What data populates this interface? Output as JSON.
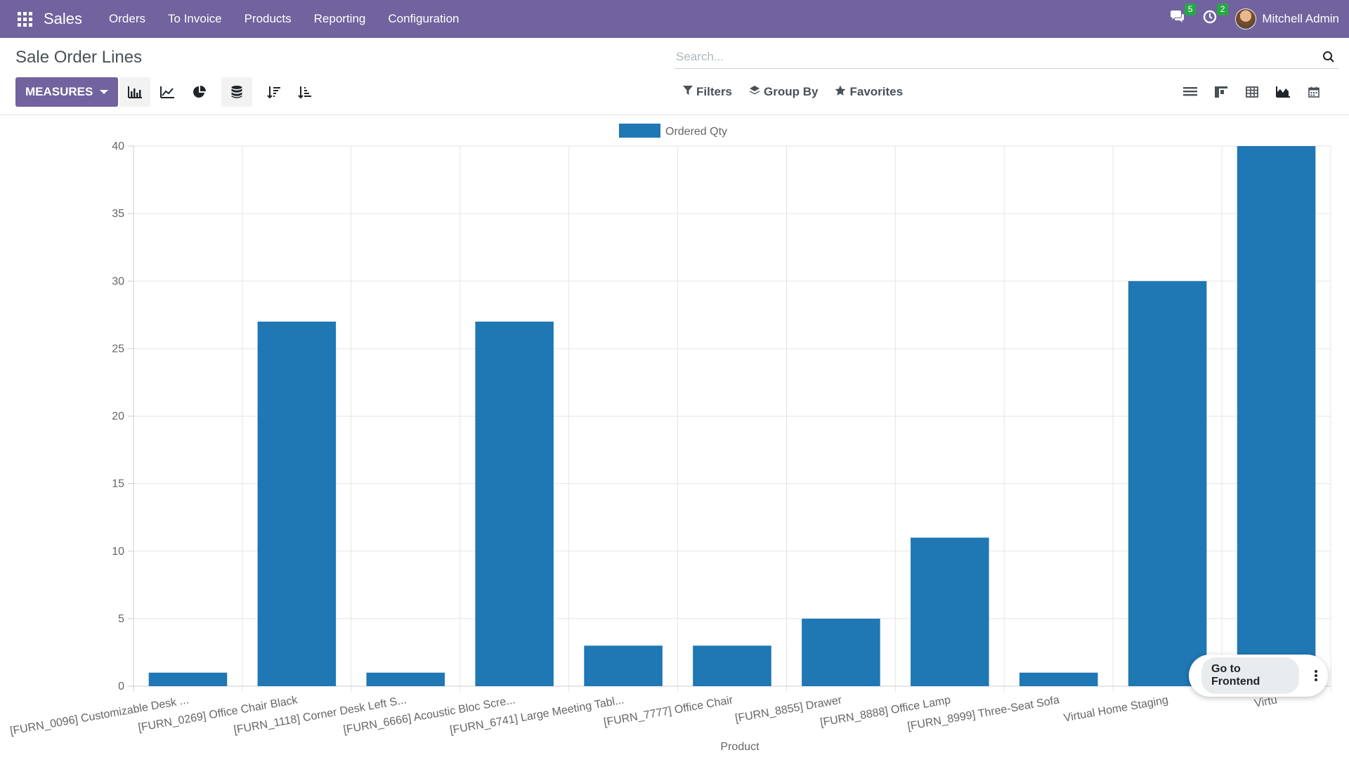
{
  "app": {
    "name": "Sales",
    "menu": [
      "Orders",
      "To Invoice",
      "Products",
      "Reporting",
      "Configuration"
    ],
    "messages_count": "5",
    "activities_count": "2",
    "user": "Mitchell Admin"
  },
  "page": {
    "title": "Sale Order Lines",
    "search_placeholder": "Search...",
    "measures_label": "MEASURES",
    "filters_label": "Filters",
    "groupby_label": "Group By",
    "favorites_label": "Favorites"
  },
  "fab": {
    "label": "Go to Frontend"
  },
  "colors": {
    "brand": "#71639e",
    "bar": "#1f77b4",
    "badge": "#28a745"
  },
  "chart_data": {
    "type": "bar",
    "categories": [
      "[FURN_0096] Customizable Desk ...",
      "[FURN_0269] Office Chair Black",
      "[FURN_1118] Corner Desk Left S...",
      "[FURN_6666] Acoustic Bloc Scre...",
      "[FURN_6741] Large Meeting Tabl...",
      "[FURN_7777] Office Chair",
      "[FURN_8855] Drawer",
      "[FURN_8888] Office Lamp",
      "[FURN_8999] Three-Seat Sofa",
      "Virtual Home Staging",
      "Virtu"
    ],
    "series": [
      {
        "name": "Ordered Qty",
        "values": [
          1,
          27,
          1,
          27,
          3,
          3,
          5,
          11,
          1,
          30,
          40
        ]
      }
    ],
    "xlabel": "Product",
    "ylabel": "",
    "ylim": [
      0,
      40
    ],
    "yticks": [
      0,
      5,
      10,
      15,
      20,
      25,
      30,
      35,
      40
    ],
    "legend_position": "top-center",
    "grid": true
  }
}
